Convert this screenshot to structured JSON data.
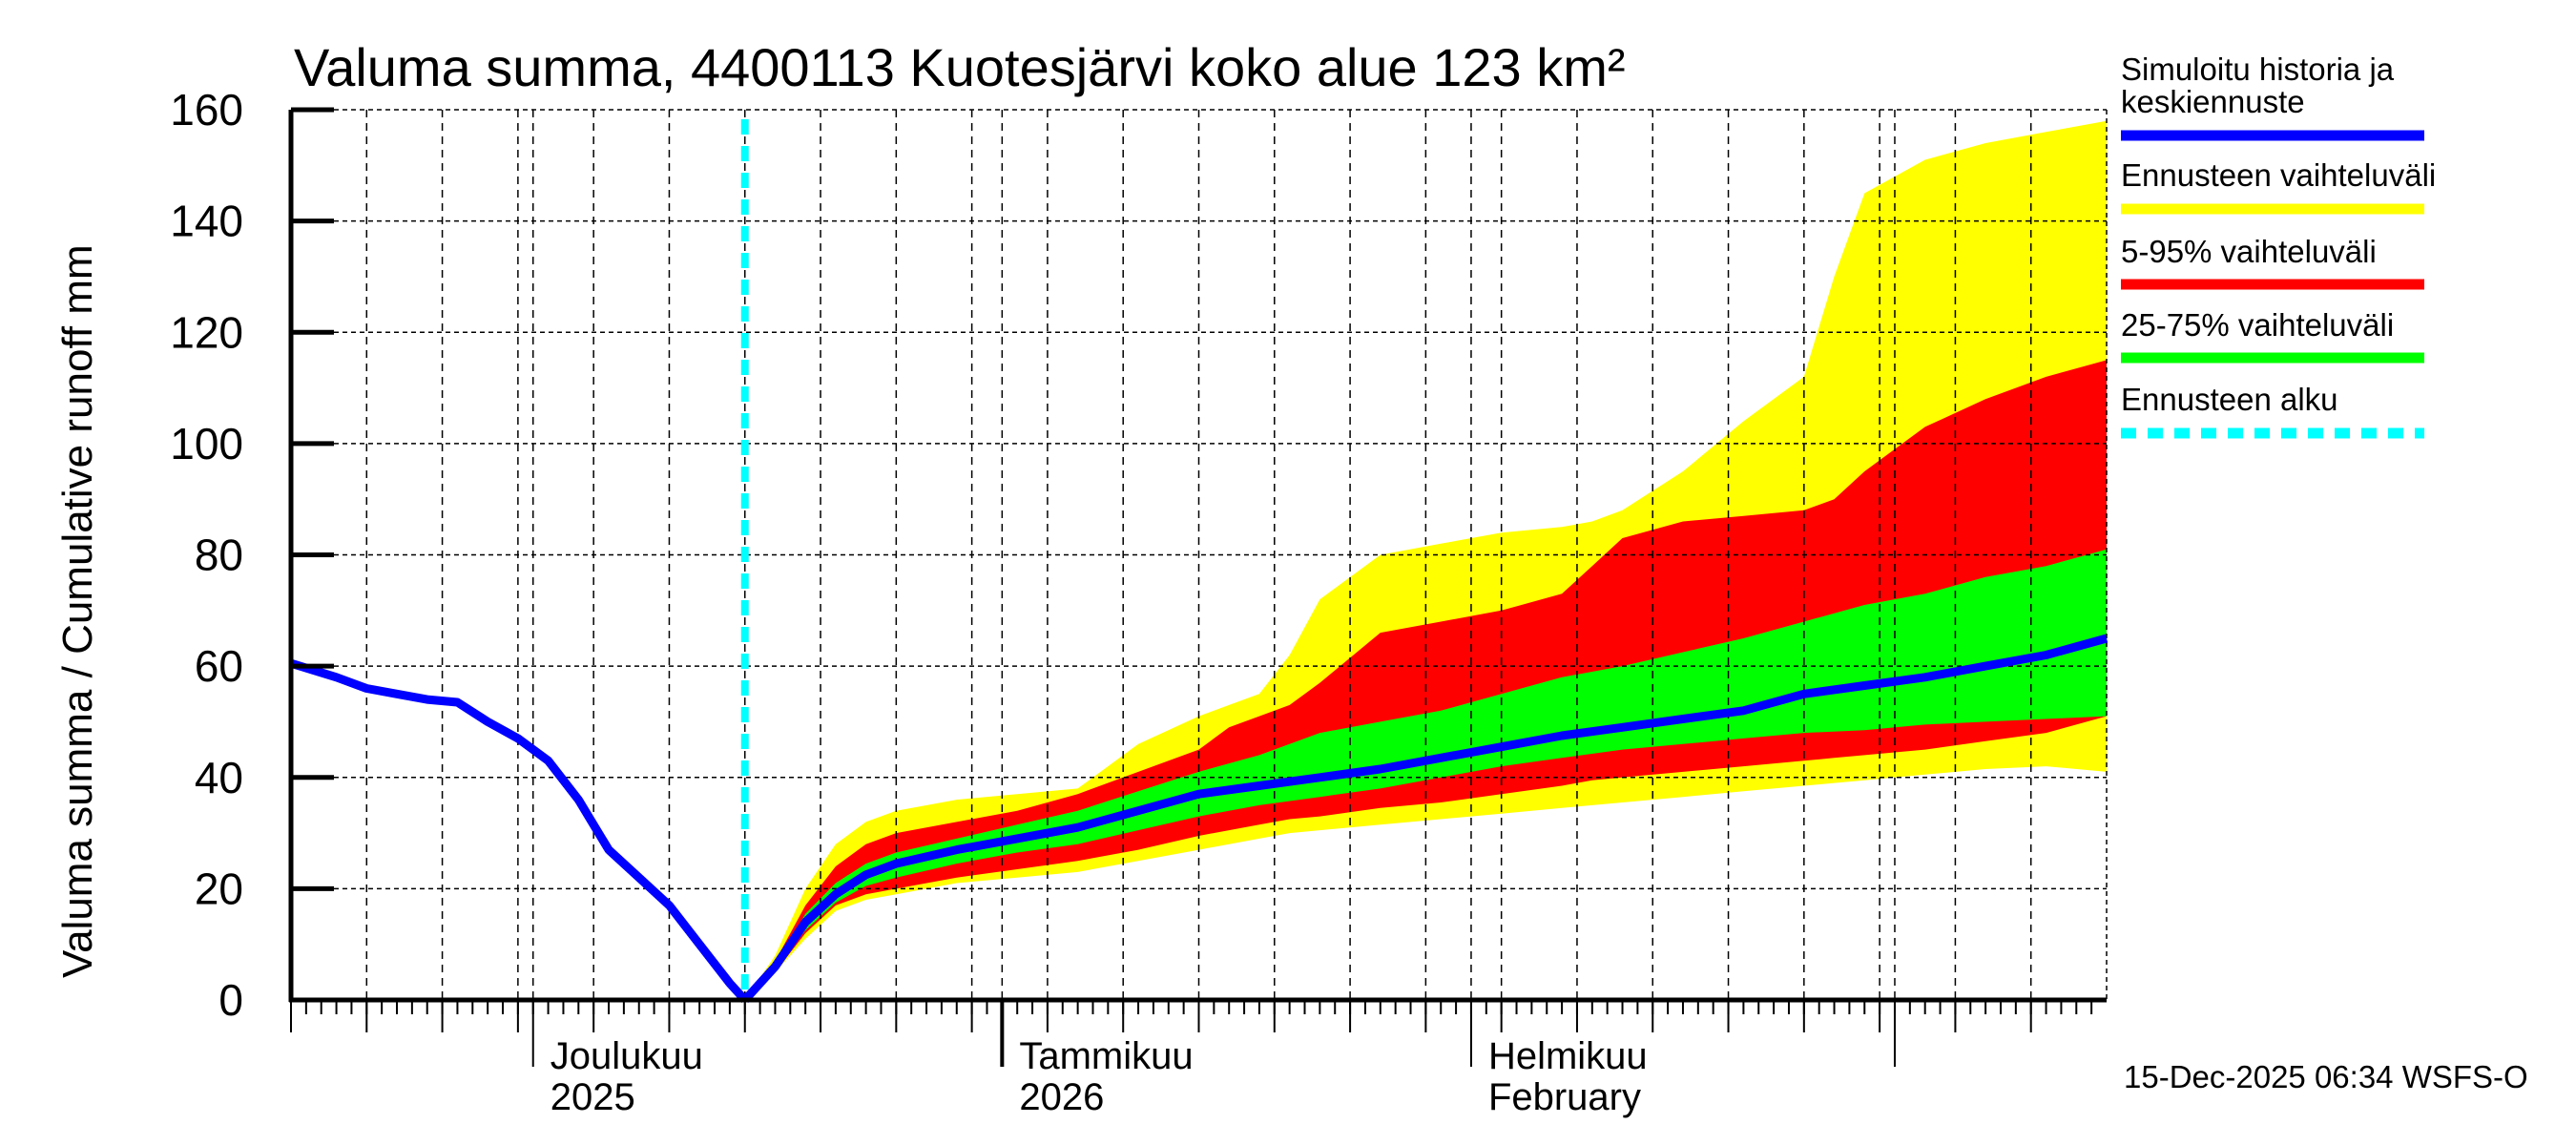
{
  "chart_data": {
    "type": "area",
    "title": "Valuma summa, 4400113 Kuotesjärvi koko alue 123 km²",
    "ylabel": "Valuma summa / Cumulative runoff    mm",
    "ylim": [
      0,
      160
    ],
    "yticks": [
      0,
      20,
      40,
      60,
      80,
      100,
      120,
      140,
      160
    ],
    "ytick_labels": [
      "0",
      "20",
      "40",
      "60",
      "80",
      "100",
      "120",
      "140",
      "160"
    ],
    "x_unit": "days since 15-Nov-2025",
    "xlim": [
      0,
      120
    ],
    "grid": true,
    "forecast_start_day": 30,
    "month_labels": [
      {
        "day": 16,
        "line1": "Joulukuu",
        "line2": "2025"
      },
      {
        "day": 47,
        "line1": "Tammikuu",
        "line2": "2026"
      },
      {
        "day": 78,
        "line1": "Helmikuu",
        "line2": "February"
      }
    ],
    "history": {
      "name": "Simuloitu historia ja keskiennuste",
      "x": [
        0,
        3,
        5,
        7,
        9,
        11,
        13,
        15,
        17,
        19,
        21,
        23,
        25,
        27,
        29,
        30
      ],
      "y": [
        60.5,
        58,
        56,
        55,
        54,
        53.5,
        50,
        47,
        43,
        36,
        27,
        22,
        17,
        10,
        3,
        0
      ]
    },
    "median": {
      "x": [
        30,
        32,
        34,
        36,
        38,
        40,
        44,
        48,
        52,
        56,
        60,
        64,
        68,
        72,
        76,
        80,
        84,
        88,
        92,
        96,
        100,
        104,
        108,
        112,
        116,
        120
      ],
      "y": [
        0,
        6,
        14,
        19,
        22.5,
        24.5,
        27,
        29,
        31,
        34,
        37,
        38.5,
        40,
        41.5,
        43.5,
        45.5,
        47.5,
        49,
        50.5,
        52,
        55,
        56.5,
        58,
        60,
        62,
        65
      ]
    },
    "bands": [
      {
        "name": "Ennusteen vaihteluväli",
        "color": "#ffff00",
        "x": [
          30,
          32,
          34,
          36,
          38,
          40,
          44,
          48,
          52,
          56,
          60,
          62,
          64,
          66,
          68,
          72,
          76,
          80,
          84,
          86,
          88,
          92,
          96,
          100,
          102,
          104,
          108,
          112,
          116,
          120
        ],
        "upper": [
          0,
          8,
          20,
          28,
          32,
          34,
          36,
          37,
          38,
          46,
          51,
          53,
          55,
          62,
          72,
          80,
          82,
          84,
          85,
          86,
          88,
          95,
          104,
          112,
          130,
          145,
          151,
          154,
          156,
          158
        ],
        "lower": [
          0,
          5,
          11,
          16,
          18,
          19,
          21,
          22,
          23,
          25,
          27,
          28,
          29,
          30,
          30.5,
          31.5,
          32.5,
          33.5,
          34.5,
          35,
          35.5,
          36.5,
          37.5,
          38.5,
          39,
          39.5,
          40.5,
          41.5,
          42,
          41
        ]
      },
      {
        "name": "5-95% vaihteluväli",
        "color": "#ff0000",
        "x": [
          30,
          32,
          34,
          36,
          38,
          40,
          44,
          48,
          52,
          56,
          60,
          62,
          64,
          66,
          68,
          72,
          76,
          80,
          84,
          86,
          88,
          92,
          96,
          100,
          102,
          104,
          108,
          112,
          116,
          120
        ],
        "upper": [
          0,
          7,
          17,
          24,
          28,
          30,
          32,
          34,
          37,
          41,
          45,
          49,
          51,
          53,
          57,
          66,
          68,
          70,
          73,
          78,
          83,
          86,
          87,
          88,
          90,
          95,
          103,
          108,
          112,
          115
        ],
        "lower": [
          0,
          5,
          12,
          17,
          19,
          20,
          22,
          23.5,
          25,
          27,
          29.5,
          30.5,
          31.5,
          32.5,
          33,
          34.5,
          35.5,
          37,
          38.5,
          39.5,
          40,
          41,
          42,
          43,
          43.5,
          44,
          45,
          46.5,
          48,
          51
        ]
      },
      {
        "name": "25-75% vaihteluväli",
        "color": "#00ff00",
        "x": [
          30,
          32,
          34,
          36,
          38,
          40,
          44,
          48,
          52,
          56,
          60,
          64,
          68,
          72,
          76,
          80,
          84,
          88,
          92,
          96,
          100,
          104,
          108,
          112,
          116,
          120
        ],
        "upper": [
          0,
          6.5,
          15.5,
          21,
          24.5,
          26.5,
          29,
          31.5,
          34,
          37.5,
          41,
          44,
          48,
          50,
          52,
          55,
          58,
          60,
          62.5,
          65,
          68,
          71,
          73,
          76,
          78,
          81
        ],
        "lower": [
          0,
          5.5,
          12.5,
          17.5,
          20.5,
          22,
          24.5,
          26.5,
          28,
          30.5,
          33,
          35,
          36.5,
          38,
          40,
          42,
          43.5,
          45,
          46,
          47,
          48,
          48.5,
          49.5,
          50,
          50.5,
          51
        ]
      }
    ],
    "legend": {
      "position": "right",
      "items": [
        {
          "line1": "Simuloitu historia ja",
          "line2": "keskiennuste",
          "color": "#0000ff",
          "style": "solid"
        },
        {
          "line1": "Ennusteen vaihteluväli",
          "line2": "",
          "color": "#ffff00",
          "style": "solid"
        },
        {
          "line1": "5-95% vaihteluväli",
          "line2": "",
          "color": "#ff0000",
          "style": "solid"
        },
        {
          "line1": "25-75% vaihteluväli",
          "line2": "",
          "color": "#00ff00",
          "style": "solid"
        },
        {
          "line1": "Ennusteen alku",
          "line2": "",
          "color": "#00ffff",
          "style": "dashed"
        }
      ]
    },
    "footer": "15-Dec-2025 06:34 WSFS-O"
  }
}
